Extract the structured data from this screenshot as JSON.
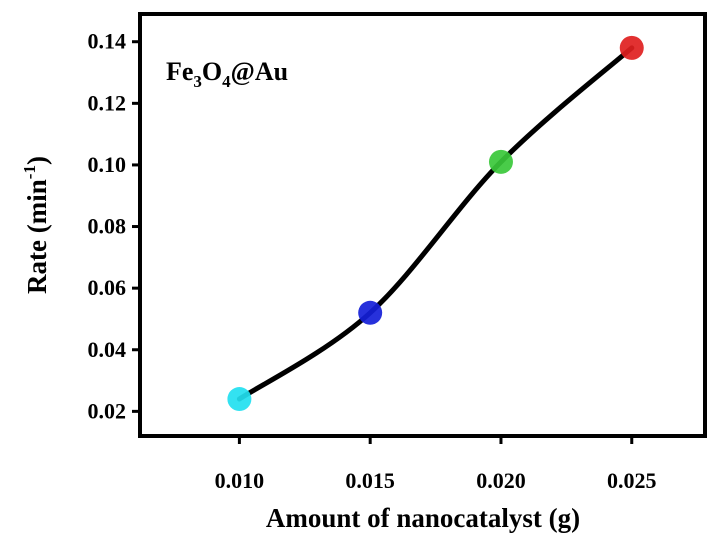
{
  "chart_data": {
    "type": "scatter",
    "title": "",
    "annotation": {
      "base": "Fe",
      "sub1": "3",
      "mid": "O",
      "sub2": "4",
      "tail": "@Au"
    },
    "xlabel": "Amount of nanocatalyst (g)",
    "ylabel": {
      "text": "Rate (min",
      "sup": "-1",
      "close": ")"
    },
    "xlim": [
      0.0062,
      0.0278
    ],
    "ylim": [
      0.012,
      0.149
    ],
    "xticks": [
      0.01,
      0.015,
      0.02,
      0.025
    ],
    "xtick_labels": [
      "0.010",
      "0.015",
      "0.020",
      "0.025"
    ],
    "yticks": [
      0.02,
      0.04,
      0.06,
      0.08,
      0.1,
      0.12,
      0.14
    ],
    "ytick_labels": [
      "0.02",
      "0.04",
      "0.06",
      "0.08",
      "0.10",
      "0.12",
      "0.14"
    ],
    "series": [
      {
        "x": [
          0.01,
          0.015,
          0.02,
          0.025
        ],
        "y": [
          0.024,
          0.052,
          0.101,
          0.138
        ],
        "point_colors": [
          "#22e0f0",
          "#1520d8",
          "#3ac83a",
          "#e02020"
        ],
        "line_color": "#000000",
        "fit": "smooth"
      }
    ],
    "grid": false,
    "legend": "none"
  }
}
